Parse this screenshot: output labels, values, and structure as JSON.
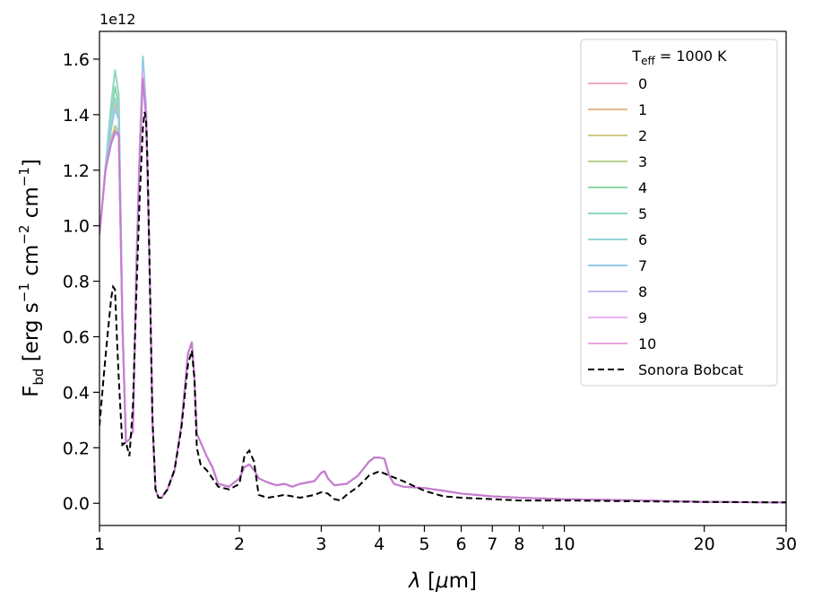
{
  "chart_data": {
    "type": "line",
    "title": "",
    "xlabel": "λ [μm]",
    "ylabel": "F_bd [erg s^-1 cm^-2 cm^-1]",
    "y_offset_label": "1e12",
    "x_scale": "log",
    "xlim": [
      1,
      30
    ],
    "ylim": [
      -0.08,
      1.7
    ],
    "x_ticks": [
      1,
      2,
      3,
      4,
      5,
      6,
      7,
      8,
      10,
      20,
      30
    ],
    "x_tick_labels": [
      "1",
      "2",
      "3",
      "4",
      "5",
      "6",
      "7",
      "8",
      "10",
      "20",
      "30"
    ],
    "y_ticks": [
      0.0,
      0.2,
      0.4,
      0.6,
      0.8,
      1.0,
      1.2,
      1.4,
      1.6
    ],
    "y_tick_labels": [
      "0.0",
      "0.2",
      "0.4",
      "0.6",
      "0.8",
      "1.0",
      "1.2",
      "1.4",
      "1.6"
    ],
    "grid": false,
    "legend_position": "top-right",
    "legend_title": "T_eff = 1000 K",
    "base_curve": {
      "x": [
        1.0,
        1.03,
        1.06,
        1.08,
        1.1,
        1.12,
        1.14,
        1.16,
        1.18,
        1.2,
        1.22,
        1.24,
        1.26,
        1.28,
        1.3,
        1.32,
        1.34,
        1.36,
        1.4,
        1.45,
        1.5,
        1.55,
        1.58,
        1.6,
        1.62,
        1.65,
        1.7,
        1.75,
        1.8,
        1.9,
        2.0,
        2.05,
        2.1,
        2.15,
        2.2,
        2.3,
        2.4,
        2.5,
        2.6,
        2.7,
        2.8,
        2.9,
        3.0,
        3.05,
        3.1,
        3.2,
        3.4,
        3.6,
        3.8,
        3.9,
        4.0,
        4.1,
        4.2,
        4.3,
        4.5,
        5.0,
        5.5,
        6.0,
        7.0,
        8.0,
        10.0,
        15.0,
        20.0,
        30.0
      ],
      "y": [
        0.97,
        1.2,
        1.3,
        1.34,
        1.33,
        0.65,
        0.22,
        0.23,
        0.26,
        0.85,
        1.25,
        1.55,
        1.4,
        0.9,
        0.3,
        0.05,
        0.02,
        0.02,
        0.05,
        0.12,
        0.28,
        0.54,
        0.58,
        0.45,
        0.25,
        0.22,
        0.17,
        0.13,
        0.07,
        0.06,
        0.09,
        0.13,
        0.14,
        0.12,
        0.09,
        0.075,
        0.065,
        0.07,
        0.06,
        0.07,
        0.075,
        0.08,
        0.11,
        0.115,
        0.09,
        0.065,
        0.07,
        0.1,
        0.15,
        0.165,
        0.165,
        0.16,
        0.1,
        0.07,
        0.06,
        0.055,
        0.045,
        0.035,
        0.025,
        0.02,
        0.015,
        0.01,
        0.005,
        0.003
      ]
    },
    "series": [
      {
        "name": "0",
        "color": "#f2a7c0",
        "peak1": 1.45,
        "peak2": 1.58
      },
      {
        "name": "1",
        "color": "#e8b98a",
        "peak1": 1.44,
        "peak2": 1.57
      },
      {
        "name": "2",
        "color": "#d4c98a",
        "peak1": 1.35,
        "peak2": 1.55
      },
      {
        "name": "3",
        "color": "#bcd08e",
        "peak1": 1.36,
        "peak2": 1.56
      },
      {
        "name": "4",
        "color": "#8fd7a0",
        "peak1": 1.5,
        "peak2": 1.6
      },
      {
        "name": "5",
        "color": "#8fd6c4",
        "peak1": 1.56,
        "peak2": 1.61
      },
      {
        "name": "6",
        "color": "#98d3d8",
        "peak1": 1.46,
        "peak2": 1.59
      },
      {
        "name": "7",
        "color": "#95c9e6",
        "peak1": 1.42,
        "peak2": 1.6
      },
      {
        "name": "8",
        "color": "#c0b8ee",
        "peak1": 1.33,
        "peak2": 1.56
      },
      {
        "name": "9",
        "color": "#e8b3f0",
        "peak1": 1.34,
        "peak2": 1.55
      },
      {
        "name": "10",
        "color": "#e8a7e2",
        "peak1": 1.34,
        "peak2": 1.53
      }
    ],
    "reference_series": {
      "name": "Sonora Bobcat",
      "color": "#000000",
      "style": "dashed",
      "x": [
        1.0,
        1.02,
        1.04,
        1.06,
        1.07,
        1.08,
        1.09,
        1.1,
        1.12,
        1.14,
        1.16,
        1.18,
        1.2,
        1.22,
        1.24,
        1.25,
        1.26,
        1.27,
        1.28,
        1.3,
        1.32,
        1.34,
        1.36,
        1.4,
        1.45,
        1.5,
        1.55,
        1.58,
        1.6,
        1.62,
        1.65,
        1.7,
        1.75,
        1.8,
        1.9,
        2.0,
        2.05,
        2.1,
        2.15,
        2.2,
        2.25,
        2.3,
        2.4,
        2.5,
        2.6,
        2.7,
        2.8,
        2.9,
        3.0,
        3.1,
        3.2,
        3.3,
        3.4,
        3.6,
        3.8,
        4.0,
        4.2,
        4.5,
        5.0,
        5.5,
        6.0,
        7.0,
        8.0,
        10.0,
        15.0,
        20.0,
        30.0
      ],
      "y": [
        0.28,
        0.45,
        0.6,
        0.74,
        0.78,
        0.77,
        0.6,
        0.45,
        0.21,
        0.22,
        0.17,
        0.35,
        0.75,
        1.1,
        1.35,
        1.41,
        1.38,
        1.2,
        0.9,
        0.3,
        0.05,
        0.02,
        0.02,
        0.05,
        0.12,
        0.27,
        0.5,
        0.55,
        0.45,
        0.2,
        0.14,
        0.12,
        0.09,
        0.06,
        0.05,
        0.07,
        0.17,
        0.19,
        0.15,
        0.03,
        0.025,
        0.02,
        0.025,
        0.03,
        0.025,
        0.02,
        0.025,
        0.03,
        0.04,
        0.035,
        0.015,
        0.01,
        0.03,
        0.06,
        0.1,
        0.115,
        0.1,
        0.08,
        0.045,
        0.025,
        0.02,
        0.015,
        0.01,
        0.01,
        0.007,
        0.005,
        0.003
      ]
    }
  }
}
